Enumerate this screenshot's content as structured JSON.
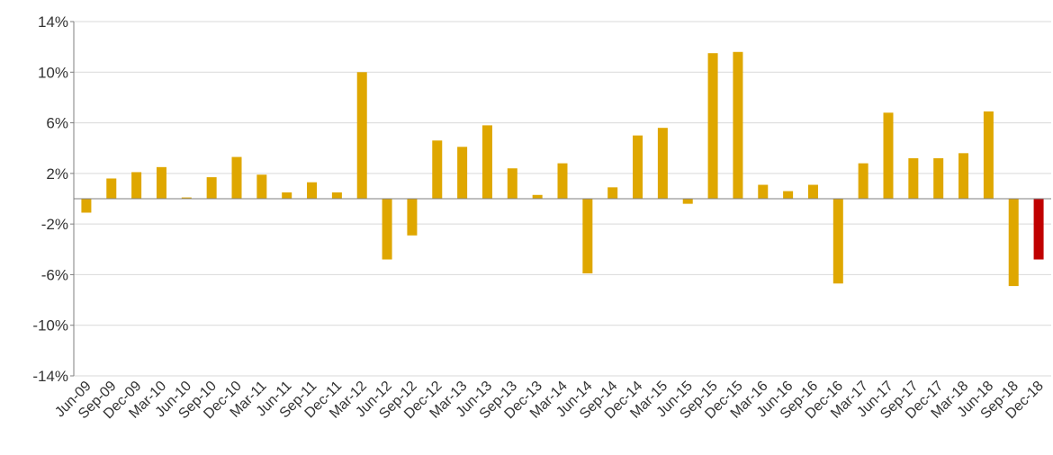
{
  "chart_data": {
    "type": "bar",
    "title": "",
    "xlabel": "",
    "ylabel": "",
    "ylim": [
      -14,
      14
    ],
    "yticks": [
      14,
      10,
      6,
      2,
      -2,
      -6,
      -10,
      -14
    ],
    "ytick_suffix": "%",
    "grid": true,
    "categories": [
      "Jun-09",
      "Sep-09",
      "Dec-09",
      "Mar-10",
      "Jun-10",
      "Sep-10",
      "Dec-10",
      "Mar-11",
      "Jun-11",
      "Sep-11",
      "Dec-11",
      "Mar-12",
      "Jun-12",
      "Sep-12",
      "Dec-12",
      "Mar-13",
      "Jun-13",
      "Sep-13",
      "Dec-13",
      "Mar-14",
      "Jun-14",
      "Sep-14",
      "Dec-14",
      "Mar-15",
      "Jun-15",
      "Sep-15",
      "Dec-15",
      "Mar-16",
      "Jun-16",
      "Sep-16",
      "Dec-16",
      "Mar-17",
      "Jun-17",
      "Sep-17",
      "Dec-17",
      "Mar-18",
      "Jun-18",
      "Sep-18",
      "Dec-18"
    ],
    "values": [
      -1.1,
      1.6,
      2.1,
      2.5,
      0.1,
      1.7,
      3.3,
      1.9,
      0.5,
      1.3,
      0.5,
      10.0,
      -4.8,
      -2.9,
      4.6,
      4.1,
      5.8,
      2.4,
      0.3,
      2.8,
      -5.9,
      0.9,
      5.0,
      5.6,
      -0.4,
      11.5,
      11.6,
      1.1,
      0.6,
      1.1,
      -6.7,
      2.8,
      6.8,
      3.2,
      3.2,
      3.6,
      6.9,
      -6.9,
      -4.8
    ],
    "bar_color": "#DFA700",
    "highlight_index": 38,
    "highlight_color": "#C00000"
  }
}
